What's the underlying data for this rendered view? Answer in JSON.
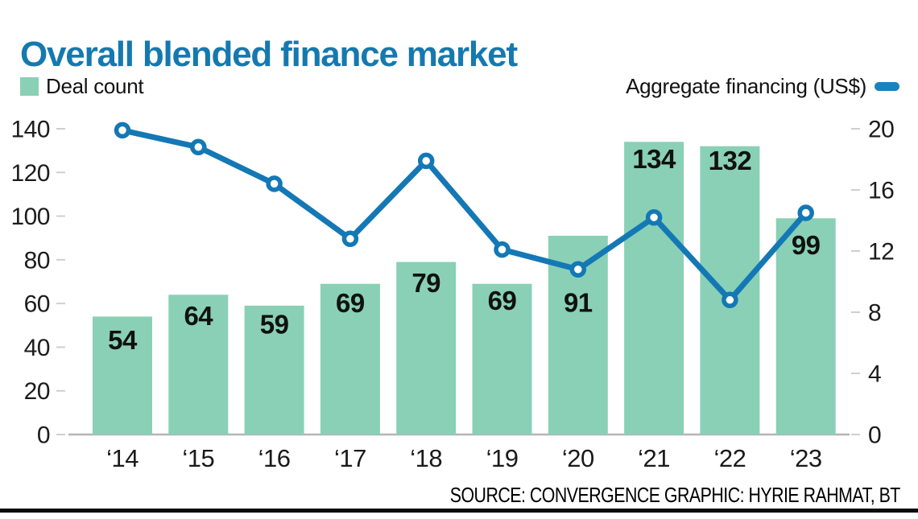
{
  "page": {
    "title": "Overall blended finance market",
    "source_credit": "SOURCE: CONVERGENCE   GRAPHIC: HYRIE RAHMAT, BT"
  },
  "legend": {
    "deal_count_label": "Deal count",
    "aggregate_label": "Aggregate financing (US$)"
  },
  "colors": {
    "title_blue": "#1579b0",
    "bar_mint": "#89d0b6",
    "line_blue": "#1478b5",
    "legend_dash_blue": "#1983bc",
    "axis_line_gray": "#b5b5b5",
    "tick_gray": "#cfcfcf",
    "axis_text": "#1c1c1c",
    "bar_label_text": "#111111",
    "footer_rule": "#0a0a0a"
  },
  "chart_data": {
    "type": "bar+line combo",
    "title": "Overall blended finance market",
    "categories": [
      "‘14",
      "‘15",
      "‘16",
      "‘17",
      "‘18",
      "‘19",
      "‘20",
      "‘21",
      "‘22",
      "‘23"
    ],
    "series": [
      {
        "name": "Deal count",
        "type": "bar",
        "axis": "left",
        "values": [
          54,
          64,
          59,
          69,
          79,
          69,
          91,
          134,
          132,
          99
        ]
      },
      {
        "name": "Aggregate financing (US$)",
        "type": "line",
        "axis": "right",
        "values": [
          19.9,
          18.8,
          16.4,
          12.8,
          17.9,
          12.1,
          10.8,
          14.2,
          8.8,
          14.5
        ]
      }
    ],
    "left_axis": {
      "ticks": [
        0,
        20,
        40,
        60,
        80,
        100,
        120,
        140
      ],
      "range": [
        0,
        140
      ]
    },
    "right_axis": {
      "ticks": [
        0,
        4,
        8,
        12,
        16,
        20
      ],
      "range": [
        0,
        20
      ]
    },
    "grid": false,
    "legend_position": "top",
    "bar_value_labels": true,
    "value_label_dy": [
      29,
      26,
      23,
      24,
      26,
      21,
      83,
      21,
      18,
      33
    ]
  }
}
